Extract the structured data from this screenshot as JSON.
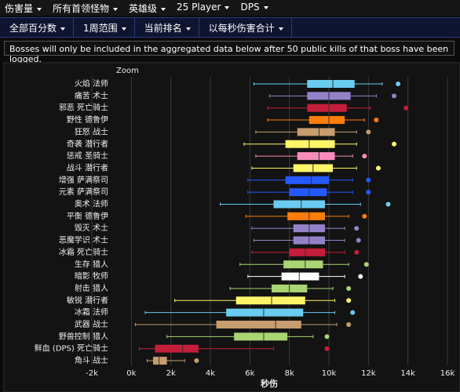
{
  "nav": {
    "menu": [
      "伤害量",
      "所有首领怪物",
      "英雄级",
      "25 Player",
      "DPS"
    ],
    "filters": [
      "全部百分数",
      "1周范围",
      "当前排名",
      "以每秒伤害合计"
    ],
    "notice": "Bosses will only be included in the aggregated data below after 50 public kills of that boss have been logged."
  },
  "chart_data": {
    "type": "box",
    "zoom_label": "Zoom",
    "x_label": "秒伤",
    "categories": [
      "火焰 法师",
      "痛苦 术士",
      "邪恶 死亡骑士",
      "野性 德鲁伊",
      "狂怒 战士",
      "奇袭 潜行者",
      "惩戒 圣骑士",
      "战斗 潜行者",
      "增强 萨满祭司",
      "元素 萨满祭司",
      "奥术 法师",
      "平衡 德鲁伊",
      "毁灭 术士",
      "恶魔学识 术士",
      "冰霜 死亡骑士",
      "生存 猎人",
      "暗影 牧师",
      "射击 猎人",
      "敏锐 潜行者",
      "冰霜 法师",
      "武器 战士",
      "野兽控制 猎人",
      "鲜血 (DPS) 死亡骑士",
      "角斗 战士"
    ],
    "values": [
      [
        6200,
        8900,
        10200,
        11300,
        12700
      ],
      [
        7000,
        8900,
        10000,
        11100,
        12400
      ],
      [
        6900,
        8900,
        10000,
        10900,
        12100
      ],
      [
        6900,
        9000,
        10000,
        10800,
        11800
      ],
      [
        6300,
        8400,
        9500,
        10300,
        11400
      ],
      [
        5700,
        7800,
        9000,
        10300,
        11400
      ],
      [
        6300,
        8400,
        9500,
        10300,
        11200
      ],
      [
        6100,
        8200,
        9200,
        10200,
        11400
      ],
      [
        5900,
        7800,
        9100,
        10000,
        11200
      ],
      [
        5900,
        8000,
        9000,
        9900,
        11200
      ],
      [
        4500,
        7200,
        8600,
        9800,
        11600
      ],
      [
        5800,
        7900,
        9000,
        9800,
        11000
      ],
      [
        6100,
        8200,
        9000,
        9800,
        10800
      ],
      [
        6200,
        8200,
        9000,
        9800,
        10800
      ],
      [
        6100,
        8000,
        8800,
        9800,
        10800
      ],
      [
        5500,
        7700,
        8800,
        9700,
        11000
      ],
      [
        5900,
        7600,
        8500,
        9500,
        10800
      ],
      [
        5000,
        7100,
        8000,
        8900,
        10200
      ],
      [
        2200,
        5300,
        7100,
        8800,
        10300
      ],
      [
        700,
        4800,
        6700,
        8700,
        10300
      ],
      [
        200,
        4300,
        7300,
        8600,
        10400
      ],
      [
        1800,
        5200,
        6700,
        7900,
        9200
      ],
      [
        400,
        1200,
        2600,
        3400,
        7200
      ],
      [
        800,
        1100,
        1400,
        1800,
        2700
      ]
    ],
    "outliers": [
      13500,
      13300,
      13900,
      12400,
      12000,
      13300,
      11800,
      12500,
      12000,
      12000,
      13000,
      11800,
      11400,
      11500,
      11400,
      11900,
      11600,
      11000,
      11000,
      11200,
      11000,
      9900,
      9900,
      3300
    ],
    "colors": [
      "#69ccf0",
      "#9482c9",
      "#c41e3a",
      "#ff7d0a",
      "#c79c6e",
      "#fff569",
      "#f58cba",
      "#fff569",
      "#2459ff",
      "#2459ff",
      "#69ccf0",
      "#ff7d0a",
      "#9482c9",
      "#9482c9",
      "#c41e3a",
      "#abd473",
      "#ffffff",
      "#abd473",
      "#fff569",
      "#69ccf0",
      "#c79c6e",
      "#abd473",
      "#c41e3a",
      "#c79c6e"
    ],
    "xlim": [
      -2000,
      16000
    ],
    "xticks": [
      {
        "value": -2000,
        "label": "-2k"
      },
      {
        "value": 0,
        "label": "0k"
      },
      {
        "value": 2000,
        "label": "2k"
      },
      {
        "value": 4000,
        "label": "4k"
      },
      {
        "value": 6000,
        "label": "6k"
      },
      {
        "value": 8000,
        "label": "8k"
      },
      {
        "value": 10000,
        "label": "10k"
      },
      {
        "value": 12000,
        "label": "12k"
      },
      {
        "value": 14000,
        "label": "14k"
      },
      {
        "value": 16000,
        "label": "16k"
      }
    ],
    "grid": true
  }
}
